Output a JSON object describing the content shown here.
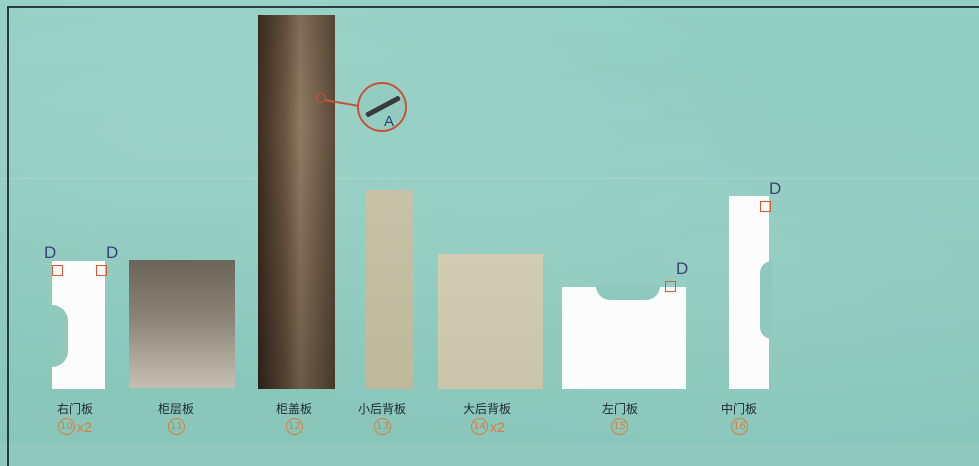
{
  "panels": [
    {
      "name": "右门板",
      "number": "10",
      "multiplier": "x2"
    },
    {
      "name": "柜层板",
      "number": "11",
      "multiplier": ""
    },
    {
      "name": "柜盖板",
      "number": "12",
      "multiplier": ""
    },
    {
      "name": "小后背板",
      "number": "13",
      "multiplier": ""
    },
    {
      "name": "大后背板",
      "number": "14",
      "multiplier": "x2"
    },
    {
      "name": "左门板",
      "number": "15",
      "multiplier": ""
    },
    {
      "name": "中门板",
      "number": "16",
      "multiplier": ""
    }
  ],
  "markers": {
    "d": "D",
    "a": "A"
  },
  "colors": {
    "background": "#8fc9bd",
    "accent": "#e07c3d",
    "marker": "#d8572f",
    "letter": "#3b3f7a"
  }
}
